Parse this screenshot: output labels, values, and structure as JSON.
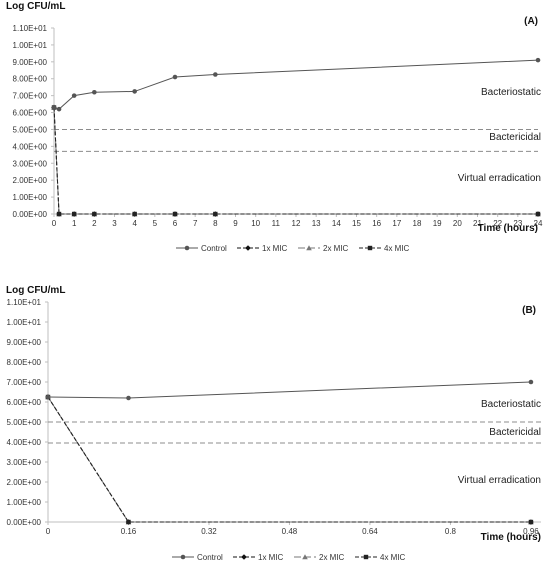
{
  "chart_data": [
    {
      "type": "line",
      "panel_label": "(A)",
      "ylabel": "Log CFU/mL",
      "xlabel": "Time (hours)",
      "ylim": [
        0,
        11
      ],
      "xlim": [
        0,
        24
      ],
      "y_ticks": [
        {
          "v": 0,
          "label": "0.00E+00"
        },
        {
          "v": 1,
          "label": "1.00E+00"
        },
        {
          "v": 2,
          "label": "2.00E+00"
        },
        {
          "v": 3,
          "label": "3.00E+00"
        },
        {
          "v": 4,
          "label": "4.00E+00"
        },
        {
          "v": 5,
          "label": "5.00E+00"
        },
        {
          "v": 6,
          "label": "6.00E+00"
        },
        {
          "v": 7,
          "label": "7.00E+00"
        },
        {
          "v": 8,
          "label": "8.00E+00"
        },
        {
          "v": 9,
          "label": "9.00E+00"
        },
        {
          "v": 10,
          "label": "1.00E+01"
        },
        {
          "v": 11,
          "label": "1.10E+01"
        }
      ],
      "x_ticks": [
        {
          "v": 0,
          "label": "0"
        },
        {
          "v": 1,
          "label": "1"
        },
        {
          "v": 2,
          "label": "2"
        },
        {
          "v": 3,
          "label": "3"
        },
        {
          "v": 4,
          "label": "4"
        },
        {
          "v": 5,
          "label": "5"
        },
        {
          "v": 6,
          "label": "6"
        },
        {
          "v": 7,
          "label": "7"
        },
        {
          "v": 8,
          "label": "8"
        },
        {
          "v": 9,
          "label": "9"
        },
        {
          "v": 10,
          "label": "10"
        },
        {
          "v": 11,
          "label": "11"
        },
        {
          "v": 12,
          "label": "12"
        },
        {
          "v": 13,
          "label": "13"
        },
        {
          "v": 14,
          "label": "14"
        },
        {
          "v": 15,
          "label": "15"
        },
        {
          "v": 16,
          "label": "16"
        },
        {
          "v": 17,
          "label": "17"
        },
        {
          "v": 18,
          "label": "18"
        },
        {
          "v": 19,
          "label": "19"
        },
        {
          "v": 20,
          "label": "20"
        },
        {
          "v": 21,
          "label": "21"
        },
        {
          "v": 22,
          "label": "22"
        },
        {
          "v": 23,
          "label": "23"
        },
        {
          "v": 24,
          "label": "24"
        }
      ],
      "reference_lines": [
        {
          "y": 5.0,
          "label": "Bacteriostatic",
          "style": "dashed"
        },
        {
          "y": 3.7,
          "label": "Bactericidal",
          "style": "dashed"
        }
      ],
      "zone_labels": [
        "Bacteriostatic",
        "Bactericidal",
        "Virtual erradication"
      ],
      "series": [
        {
          "name": "Control",
          "style": "solid",
          "marker": "circle",
          "color": "#555555",
          "x": [
            0,
            0.25,
            1,
            2,
            4,
            6,
            8,
            24
          ],
          "y": [
            6.3,
            6.2,
            7.0,
            7.2,
            7.25,
            8.1,
            8.25,
            9.1
          ]
        },
        {
          "name": "1x MIC",
          "style": "dashed",
          "marker": "diamond",
          "color": "#111111",
          "x": [
            0,
            0.25,
            1,
            2,
            4,
            6,
            8,
            24
          ],
          "y": [
            6.3,
            0,
            0,
            0,
            0,
            0,
            0,
            0
          ]
        },
        {
          "name": "2x MIC",
          "style": "longdash",
          "marker": "triangle",
          "color": "#777777",
          "x": [
            0,
            0.25,
            1,
            2,
            4,
            6,
            8,
            24
          ],
          "y": [
            6.3,
            0,
            0,
            0,
            0,
            0,
            0,
            0
          ]
        },
        {
          "name": "4x MIC",
          "style": "dashed",
          "marker": "square",
          "color": "#222222",
          "x": [
            0,
            0.25,
            1,
            2,
            4,
            6,
            8,
            24
          ],
          "y": [
            6.3,
            0,
            0,
            0,
            0,
            0,
            0,
            0
          ]
        }
      ],
      "legend_position": "bottom",
      "grid": false
    },
    {
      "type": "line",
      "panel_label": "(B)",
      "ylabel": "Log CFU/mL",
      "xlabel": "Time (hours)",
      "ylim": [
        0,
        11
      ],
      "xlim": [
        0,
        0.98
      ],
      "y_ticks": [
        {
          "v": 0,
          "label": "0.00E+00"
        },
        {
          "v": 1,
          "label": "1.00E+00"
        },
        {
          "v": 2,
          "label": "2.00E+00"
        },
        {
          "v": 3,
          "label": "3.00E+00"
        },
        {
          "v": 4,
          "label": "4.00E+00"
        },
        {
          "v": 5,
          "label": "5.00E+00"
        },
        {
          "v": 6,
          "label": "6.00E+00"
        },
        {
          "v": 7,
          "label": "7.00E+00"
        },
        {
          "v": 8,
          "label": "8.00E+00"
        },
        {
          "v": 9,
          "label": "9.00E+00"
        },
        {
          "v": 10,
          "label": "1.00E+01"
        },
        {
          "v": 11,
          "label": "1.10E+01"
        }
      ],
      "x_ticks": [
        {
          "v": 0,
          "label": "0"
        },
        {
          "v": 0.16,
          "label": "0.16"
        },
        {
          "v": 0.32,
          "label": "0.32"
        },
        {
          "v": 0.48,
          "label": "0.48"
        },
        {
          "v": 0.64,
          "label": "0.64"
        },
        {
          "v": 0.8,
          "label": "0.8"
        },
        {
          "v": 0.96,
          "label": "0.96"
        }
      ],
      "reference_lines": [
        {
          "y": 5.0,
          "label": "Bacteriostatic",
          "style": "dashed"
        },
        {
          "y": 3.95,
          "label": "Bactericidal",
          "style": "dashed"
        }
      ],
      "zone_labels": [
        "Bacteriostatic",
        "Bactericidal",
        "Virtual erradication"
      ],
      "series": [
        {
          "name": "Control",
          "style": "solid",
          "marker": "circle",
          "color": "#555555",
          "x": [
            0,
            0.16,
            0.96
          ],
          "y": [
            6.25,
            6.2,
            7.0
          ]
        },
        {
          "name": "1x MIC",
          "style": "dashed",
          "marker": "diamond",
          "color": "#111111",
          "x": [
            0,
            0.16,
            0.96
          ],
          "y": [
            6.25,
            0,
            0
          ]
        },
        {
          "name": "2x MIC",
          "style": "longdash",
          "marker": "triangle",
          "color": "#777777",
          "x": [
            0,
            0.16,
            0.96
          ],
          "y": [
            6.25,
            0,
            0
          ]
        },
        {
          "name": "4x MIC",
          "style": "dashed",
          "marker": "square",
          "color": "#222222",
          "x": [
            0,
            0.16,
            0.96
          ],
          "y": [
            6.25,
            0,
            0
          ]
        }
      ],
      "legend_position": "bottom",
      "grid": false
    }
  ]
}
